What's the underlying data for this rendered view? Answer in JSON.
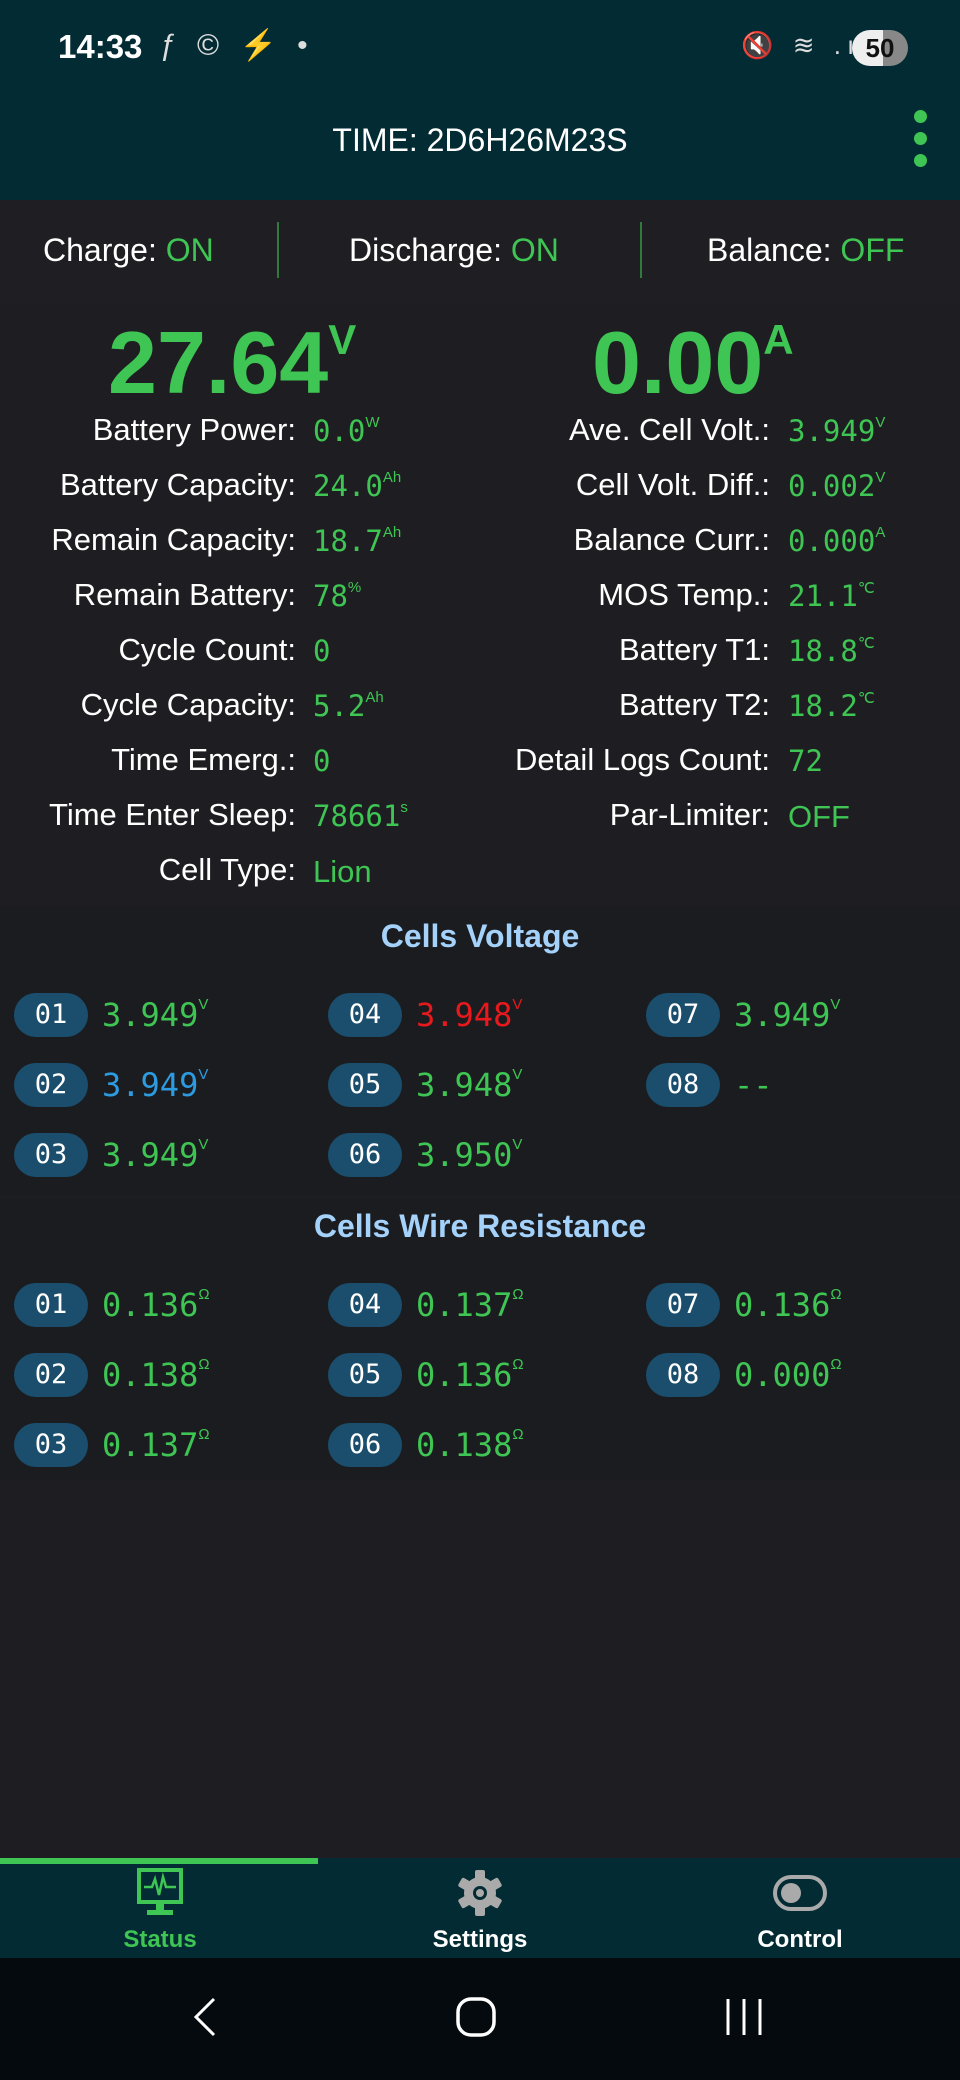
{
  "status_bar": {
    "time": "14:33",
    "battery": "50"
  },
  "app_bar": {
    "title": "TIME: 2D6H26M23S"
  },
  "toggles": [
    {
      "label": "Charge:",
      "value": "ON"
    },
    {
      "label": "Discharge:",
      "value": "ON"
    },
    {
      "label": "Balance:",
      "value": "OFF"
    }
  ],
  "voltage": {
    "value": "27.64",
    "unit": "V"
  },
  "current": {
    "value": "0.00",
    "unit": "A"
  },
  "left_stats": [
    {
      "label": "Battery Power:",
      "value": "0.0",
      "unit": "W"
    },
    {
      "label": "Battery Capacity:",
      "value": "24.0",
      "unit": "Ah"
    },
    {
      "label": "Remain Capacity:",
      "value": "18.7",
      "unit": "Ah"
    },
    {
      "label": "Remain Battery:",
      "value": "78",
      "unit": "%"
    },
    {
      "label": "Cycle Count:",
      "value": "0",
      "unit": ""
    },
    {
      "label": "Cycle Capacity:",
      "value": "5.2",
      "unit": "Ah"
    },
    {
      "label": "Time Emerg.:",
      "value": "0",
      "unit": ""
    },
    {
      "label": "Time Enter Sleep:",
      "value": "78661",
      "unit": "s"
    },
    {
      "label": "Cell Type:",
      "value": "Lion",
      "unit": ""
    }
  ],
  "right_stats": [
    {
      "label": "Ave. Cell Volt.:",
      "value": "3.949",
      "unit": "V"
    },
    {
      "label": "Cell Volt. Diff.:",
      "value": "0.002",
      "unit": "V"
    },
    {
      "label": "Balance Curr.:",
      "value": "0.000",
      "unit": "A"
    },
    {
      "label": "MOS Temp.:",
      "value": "21.1",
      "unit": "℃"
    },
    {
      "label": "Battery T1:",
      "value": "18.8",
      "unit": "℃"
    },
    {
      "label": "Battery T2:",
      "value": "18.2",
      "unit": "℃"
    },
    {
      "label": "Detail Logs Count:",
      "value": "72",
      "unit": ""
    },
    {
      "label": "Par-Limiter:",
      "value": "OFF",
      "unit": ""
    }
  ],
  "cells_voltage": {
    "title": "Cells Voltage",
    "cells": [
      {
        "id": "01",
        "value": "3.949",
        "unit": "V",
        "color": "#3ec553"
      },
      {
        "id": "02",
        "value": "3.949",
        "unit": "V",
        "color": "#2d9be0"
      },
      {
        "id": "03",
        "value": "3.949",
        "unit": "V",
        "color": "#3ec553"
      },
      {
        "id": "04",
        "value": "3.948",
        "unit": "V",
        "color": "#e8191c"
      },
      {
        "id": "05",
        "value": "3.948",
        "unit": "V",
        "color": "#3ec553"
      },
      {
        "id": "06",
        "value": "3.950",
        "unit": "V",
        "color": "#3ec553"
      },
      {
        "id": "07",
        "value": "3.949",
        "unit": "V",
        "color": "#3ec553"
      },
      {
        "id": "08",
        "value": "--",
        "unit": "",
        "color": "#3ec553"
      }
    ]
  },
  "cells_resistance": {
    "title": "Cells Wire Resistance",
    "cells": [
      {
        "id": "01",
        "value": "0.136",
        "unit": "Ω"
      },
      {
        "id": "02",
        "value": "0.138",
        "unit": "Ω"
      },
      {
        "id": "03",
        "value": "0.137",
        "unit": "Ω"
      },
      {
        "id": "04",
        "value": "0.137",
        "unit": "Ω"
      },
      {
        "id": "05",
        "value": "0.136",
        "unit": "Ω"
      },
      {
        "id": "06",
        "value": "0.138",
        "unit": "Ω"
      },
      {
        "id": "07",
        "value": "0.136",
        "unit": "Ω"
      },
      {
        "id": "08",
        "value": "0.000",
        "unit": "Ω"
      }
    ]
  },
  "bottom_nav": [
    {
      "label": "Status",
      "icon": "monitor-heartbeat-icon",
      "active": true
    },
    {
      "label": "Settings",
      "icon": "gear-icon"
    },
    {
      "label": "Control",
      "icon": "toggle-icon"
    }
  ],
  "colors": {
    "accent": "#3ec553",
    "header": "#022b33",
    "badge": "#1a4e6c",
    "section_title": "#a5d2fb"
  }
}
